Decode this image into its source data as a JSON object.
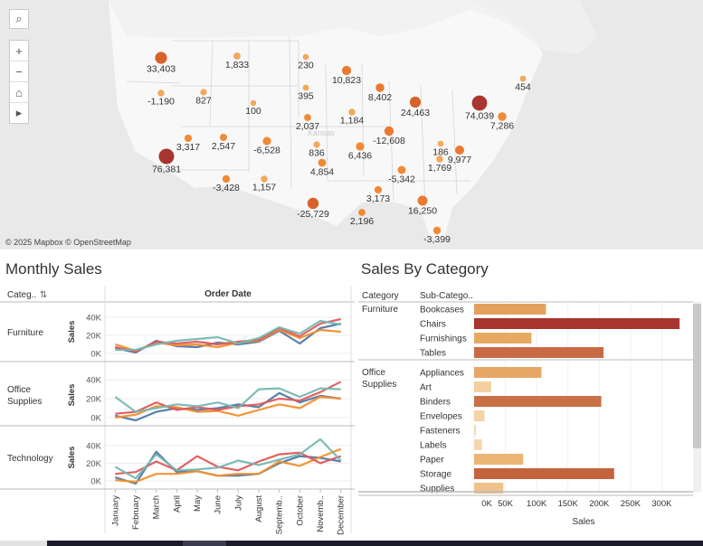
{
  "map": {
    "attribution": "© 2025 Mapbox © OpenStreetMap",
    "controls": {
      "search": "⌕",
      "zoom_in": "+",
      "zoom_out": "−",
      "home": "⌂",
      "expand": "▸"
    },
    "faded_label": "Kansas",
    "markers": [
      {
        "label": "33,403",
        "value": 33403
      },
      {
        "label": "-1,190",
        "value": -1190
      },
      {
        "label": "827",
        "value": 827
      },
      {
        "label": "1,833",
        "value": 1833
      },
      {
        "label": "100",
        "value": 100
      },
      {
        "label": "230",
        "value": 230
      },
      {
        "label": "395",
        "value": 395
      },
      {
        "label": "2,037",
        "value": 2037
      },
      {
        "label": "10,823",
        "value": 10823
      },
      {
        "label": "8,402",
        "value": 8402
      },
      {
        "label": "1,184",
        "value": 1184
      },
      {
        "label": "24,463",
        "value": 24463
      },
      {
        "label": "74,039",
        "value": 74039
      },
      {
        "label": "454",
        "value": 454
      },
      {
        "label": "7,286",
        "value": 7286
      },
      {
        "label": "3,317",
        "value": 3317
      },
      {
        "label": "76,381",
        "value": 76381
      },
      {
        "label": "2,547",
        "value": 2547
      },
      {
        "label": "-6,528",
        "value": -6528
      },
      {
        "label": "836",
        "value": 836
      },
      {
        "label": "6,436",
        "value": 6436
      },
      {
        "label": "-12,608",
        "value": -12608
      },
      {
        "label": "186",
        "value": 186
      },
      {
        "label": "9,977",
        "value": 9977
      },
      {
        "label": "-3,428",
        "value": -3428
      },
      {
        "label": "1,157",
        "value": 1157
      },
      {
        "label": "4,854",
        "value": 4854
      },
      {
        "label": "-5,342",
        "value": -5342
      },
      {
        "label": "3,173",
        "value": 3173
      },
      {
        "label": "1,769",
        "value": 1769
      },
      {
        "label": "-25,729",
        "value": -25729
      },
      {
        "label": "16,250",
        "value": 16250
      },
      {
        "label": "2,196",
        "value": 2196
      },
      {
        "label": "-3,399",
        "value": -3399
      }
    ]
  },
  "monthly": {
    "title": "Monthly Sales",
    "row_header": "Categ..",
    "col_header": "Order Date",
    "ylabel": "Sales",
    "months": [
      "January",
      "February",
      "March",
      "April",
      "May",
      "June",
      "July",
      "August",
      "Septemb..",
      "October",
      "Novemb..",
      "December"
    ],
    "colors": [
      "#4e79a7",
      "#f28e2b",
      "#e15759",
      "#76b7b2"
    ],
    "rows": [
      {
        "category": "Furniture",
        "ticks": [
          "40K",
          "20K",
          "0K"
        ],
        "ymax": 45000,
        "series": [
          [
            6000,
            1000,
            14000,
            8000,
            7000,
            12000,
            10000,
            13000,
            25000,
            11000,
            28000,
            33000
          ],
          [
            10000,
            3000,
            12000,
            9000,
            10000,
            7000,
            12000,
            14000,
            26000,
            17000,
            26000,
            24000
          ],
          [
            7000,
            2000,
            13000,
            11000,
            13000,
            10000,
            13000,
            15000,
            28000,
            19000,
            33000,
            38000
          ],
          [
            4000,
            4000,
            10000,
            14000,
            16000,
            18000,
            11000,
            17000,
            29000,
            22000,
            36000,
            32000
          ]
        ]
      },
      {
        "category": "Office Supplies",
        "ticks": [
          "40K",
          "20K",
          "0K"
        ],
        "ymax": 45000,
        "series": [
          [
            2000,
            -3000,
            6000,
            10000,
            8000,
            10000,
            14000,
            11000,
            26000,
            16000,
            23000,
            20000
          ],
          [
            0,
            3000,
            12000,
            11000,
            6000,
            7000,
            2000,
            8000,
            14000,
            10000,
            22000,
            20000
          ],
          [
            4000,
            6000,
            16000,
            8000,
            11000,
            8000,
            12000,
            14000,
            20000,
            18000,
            27000,
            38000
          ],
          [
            22000,
            6000,
            10000,
            14000,
            12000,
            16000,
            10000,
            30000,
            31000,
            22000,
            31000,
            30000
          ]
        ]
      },
      {
        "category": "Technology",
        "ticks": [
          "40K",
          "20K",
          "0K"
        ],
        "ymax": 50000,
        "series": [
          [
            4000,
            -3000,
            33000,
            10000,
            11000,
            6000,
            6000,
            8000,
            20000,
            28000,
            26000,
            22000
          ],
          [
            1000,
            -1000,
            8000,
            8000,
            11000,
            6000,
            8000,
            8000,
            22000,
            17000,
            27000,
            36000
          ],
          [
            8000,
            10000,
            22000,
            12000,
            28000,
            16000,
            12000,
            22000,
            30000,
            32000,
            20000,
            28000
          ],
          [
            16000,
            3000,
            30000,
            12000,
            13000,
            15000,
            23000,
            18000,
            24000,
            30000,
            47000,
            23000
          ]
        ]
      }
    ]
  },
  "category": {
    "title": "Sales By Category",
    "col_category": "Category",
    "col_subcategory": "Sub-Catego..",
    "xlabel": "Sales",
    "ticks": [
      "0K",
      "50K",
      "100K",
      "150K",
      "200K",
      "250K",
      "300K"
    ],
    "xmax": 350000,
    "groups": [
      {
        "name": "Furniture",
        "items": [
          {
            "sub": "Bookcases",
            "value": 114880,
            "color": "#e4a15e"
          },
          {
            "sub": "Chairs",
            "value": 328449,
            "color": "#a8352f"
          },
          {
            "sub": "Furnishings",
            "value": 91705,
            "color": "#e8aa62"
          },
          {
            "sub": "Tables",
            "value": 206966,
            "color": "#c86b44"
          }
        ]
      },
      {
        "name": "Office Supplies",
        "items": [
          {
            "sub": "Appliances",
            "value": 107532,
            "color": "#e6a767"
          },
          {
            "sub": "Art",
            "value": 27119,
            "color": "#f3cfa0"
          },
          {
            "sub": "Binders",
            "value": 203413,
            "color": "#c97046"
          },
          {
            "sub": "Envelopes",
            "value": 16476,
            "color": "#f4d3a8"
          },
          {
            "sub": "Fasteners",
            "value": 3024,
            "color": "#f6dbb4"
          },
          {
            "sub": "Labels",
            "value": 12486,
            "color": "#f5d6ad"
          },
          {
            "sub": "Paper",
            "value": 78479,
            "color": "#ebb574"
          },
          {
            "sub": "Storage",
            "value": 223844,
            "color": "#c4633e"
          },
          {
            "sub": "Supplies",
            "value": 46674,
            "color": "#efc28c"
          }
        ]
      }
    ]
  }
}
